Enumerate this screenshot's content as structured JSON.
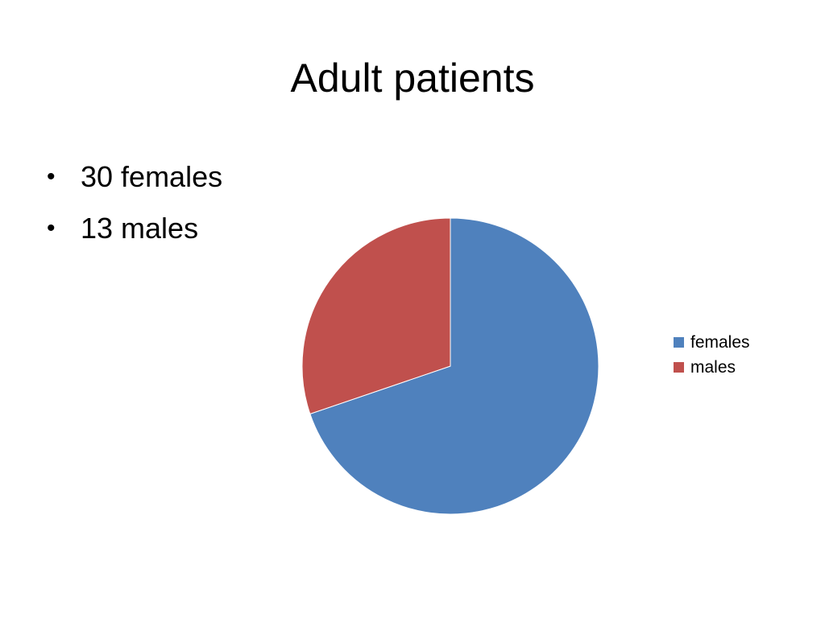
{
  "slide": {
    "title": "Adult patients",
    "bullets": [
      {
        "symbol": "•",
        "text": "30 females"
      },
      {
        "symbol": "•",
        "text": "13 males"
      }
    ]
  },
  "chart_data": {
    "type": "pie",
    "title": "",
    "legend_placement": "right",
    "categories": [
      "females",
      "males"
    ],
    "values": [
      30,
      13
    ],
    "colors": [
      "#4f81bd",
      "#c0504d"
    ]
  }
}
